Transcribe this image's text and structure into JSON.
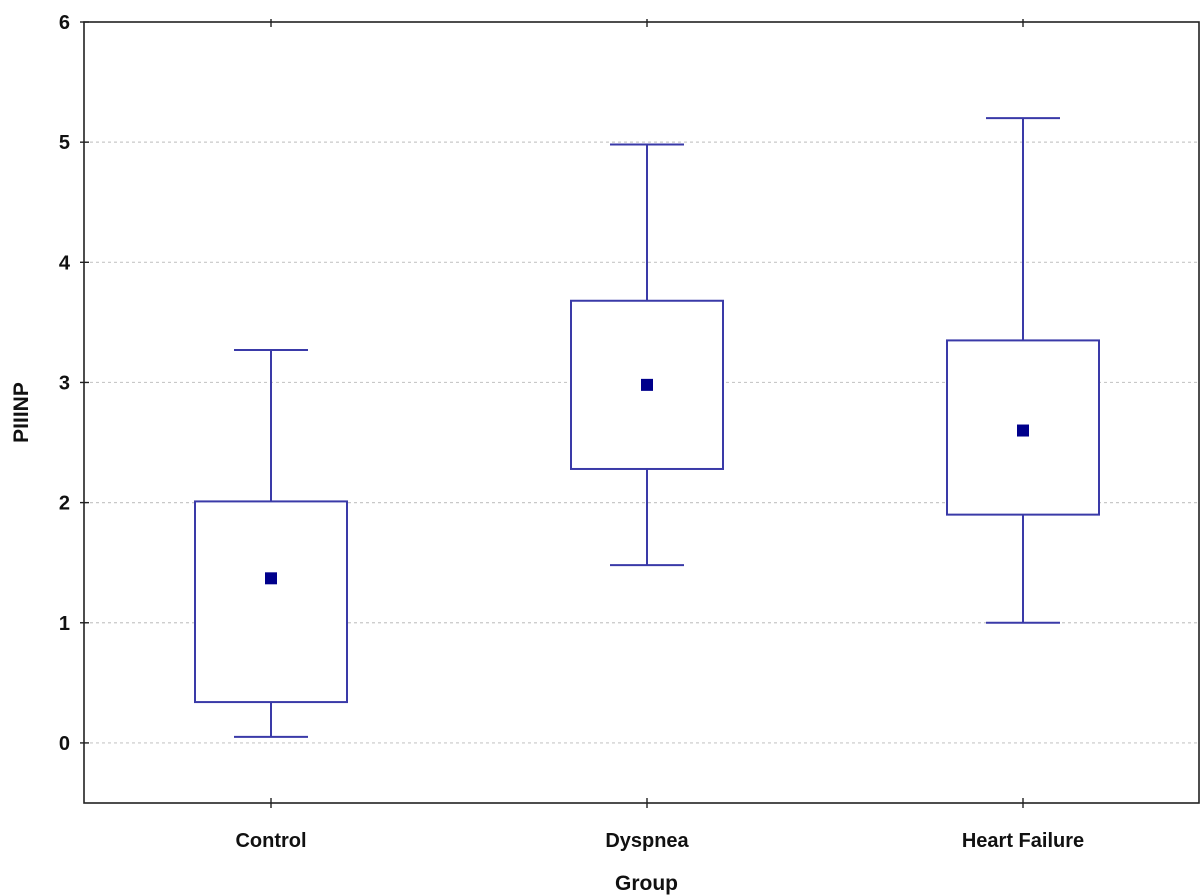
{
  "chart_data": {
    "type": "box",
    "xlabel": "Group",
    "ylabel": "PIIINP",
    "ylim": [
      -0.5,
      6
    ],
    "yticks": [
      0,
      1,
      2,
      3,
      4,
      5,
      6
    ],
    "grid": true,
    "categories": [
      "Control",
      "Dyspnea",
      "Heart Failure"
    ],
    "boxes": [
      {
        "category": "Control",
        "whisker_low": 0.05,
        "q1": 0.34,
        "median": 1.37,
        "q3": 2.01,
        "whisker_high": 3.27
      },
      {
        "category": "Dyspnea",
        "whisker_low": 1.48,
        "q1": 2.28,
        "median": 2.98,
        "q3": 3.68,
        "whisker_high": 4.98
      },
      {
        "category": "Heart Failure",
        "whisker_low": 1.0,
        "q1": 1.9,
        "median": 2.6,
        "q3": 3.35,
        "whisker_high": 5.2
      }
    ]
  },
  "colors": {
    "box_stroke": "#3a3aa8",
    "center_marker": "#00008b",
    "grid": "#c8c8c8",
    "axis": "#222222",
    "text": "#111111"
  }
}
